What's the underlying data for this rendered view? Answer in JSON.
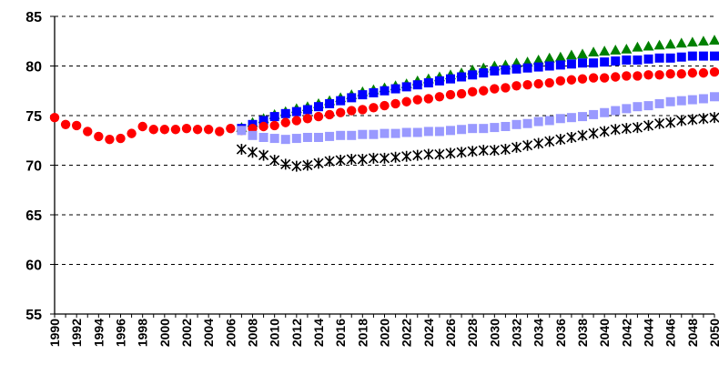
{
  "chart_data": {
    "type": "line",
    "title": "",
    "xlabel": "",
    "ylabel": "",
    "xlim": [
      1990,
      2050
    ],
    "ylim": [
      55,
      85
    ],
    "yticks": [
      55,
      60,
      65,
      70,
      75,
      80,
      85
    ],
    "xticks": [
      1990,
      1992,
      1994,
      1996,
      1998,
      2000,
      2002,
      2004,
      2006,
      2008,
      2010,
      2012,
      2014,
      2016,
      2018,
      2020,
      2022,
      2024,
      2026,
      2028,
      2030,
      2032,
      2034,
      2036,
      2038,
      2040,
      2042,
      2044,
      2046,
      2048,
      2050
    ],
    "grid": "horizontal dashed",
    "legend": "none",
    "series": [
      {
        "marker": "triangle",
        "color": "#008000",
        "x": [
          2007,
          2008,
          2009,
          2010,
          2011,
          2012,
          2013,
          2014,
          2015,
          2016,
          2017,
          2018,
          2019,
          2020,
          2021,
          2022,
          2023,
          2024,
          2025,
          2026,
          2027,
          2028,
          2029,
          2030,
          2031,
          2032,
          2033,
          2034,
          2035,
          2036,
          2037,
          2038,
          2039,
          2040,
          2041,
          2042,
          2043,
          2044,
          2045,
          2046,
          2047,
          2048,
          2049,
          2050
        ],
        "y": [
          73.8,
          74.3,
          74.7,
          75.1,
          75.4,
          75.7,
          75.9,
          76.2,
          76.5,
          76.8,
          77.1,
          77.4,
          77.6,
          77.8,
          78.0,
          78.2,
          78.5,
          78.7,
          78.9,
          79.1,
          79.3,
          79.6,
          79.8,
          80.0,
          80.1,
          80.3,
          80.4,
          80.6,
          80.8,
          80.9,
          81.1,
          81.2,
          81.4,
          81.5,
          81.6,
          81.7,
          81.9,
          82.0,
          82.1,
          82.2,
          82.3,
          82.4,
          82.5,
          82.6
        ]
      },
      {
        "marker": "square",
        "color": "#0000ff",
        "x": [
          2007,
          2008,
          2009,
          2010,
          2011,
          2012,
          2013,
          2014,
          2015,
          2016,
          2017,
          2018,
          2019,
          2020,
          2021,
          2022,
          2023,
          2024,
          2025,
          2026,
          2027,
          2028,
          2029,
          2030,
          2031,
          2032,
          2033,
          2034,
          2035,
          2036,
          2037,
          2038,
          2039,
          2040,
          2041,
          2042,
          2043,
          2044,
          2045,
          2046,
          2047,
          2048,
          2049,
          2050
        ],
        "y": [
          73.7,
          74.1,
          74.5,
          74.9,
          75.2,
          75.4,
          75.6,
          75.9,
          76.2,
          76.5,
          76.8,
          77.1,
          77.3,
          77.5,
          77.7,
          77.9,
          78.1,
          78.3,
          78.5,
          78.7,
          78.9,
          79.1,
          79.3,
          79.5,
          79.6,
          79.7,
          79.8,
          79.9,
          80.0,
          80.1,
          80.2,
          80.3,
          80.3,
          80.4,
          80.5,
          80.6,
          80.6,
          80.7,
          80.8,
          80.8,
          80.9,
          81.0,
          81.0,
          81.0
        ]
      },
      {
        "marker": "circle",
        "color": "#ff0000",
        "x": [
          1990,
          1991,
          1992,
          1993,
          1994,
          1995,
          1996,
          1997,
          1998,
          1999,
          2000,
          2001,
          2002,
          2003,
          2004,
          2005,
          2006,
          2007,
          2008,
          2009,
          2010,
          2011,
          2012,
          2013,
          2014,
          2015,
          2016,
          2017,
          2018,
          2019,
          2020,
          2021,
          2022,
          2023,
          2024,
          2025,
          2026,
          2027,
          2028,
          2029,
          2030,
          2031,
          2032,
          2033,
          2034,
          2035,
          2036,
          2037,
          2038,
          2039,
          2040,
          2041,
          2042,
          2043,
          2044,
          2045,
          2046,
          2047,
          2048,
          2049,
          2050
        ],
        "y": [
          74.8,
          74.1,
          74.0,
          73.4,
          72.9,
          72.6,
          72.7,
          73.2,
          73.9,
          73.6,
          73.6,
          73.6,
          73.7,
          73.6,
          73.6,
          73.4,
          73.7,
          73.5,
          73.7,
          73.9,
          74.0,
          74.3,
          74.5,
          74.7,
          74.9,
          75.1,
          75.3,
          75.5,
          75.6,
          75.8,
          76.0,
          76.2,
          76.4,
          76.6,
          76.7,
          76.9,
          77.1,
          77.2,
          77.4,
          77.5,
          77.7,
          77.8,
          78.0,
          78.1,
          78.2,
          78.3,
          78.5,
          78.6,
          78.7,
          78.8,
          78.8,
          78.9,
          79.0,
          79.0,
          79.1,
          79.1,
          79.2,
          79.2,
          79.3,
          79.3,
          79.4
        ]
      },
      {
        "marker": "square",
        "color": "#9999ff",
        "x": [
          2007,
          2008,
          2009,
          2010,
          2011,
          2012,
          2013,
          2014,
          2015,
          2016,
          2017,
          2018,
          2019,
          2020,
          2021,
          2022,
          2023,
          2024,
          2025,
          2026,
          2027,
          2028,
          2029,
          2030,
          2031,
          2032,
          2033,
          2034,
          2035,
          2036,
          2037,
          2038,
          2039,
          2040,
          2041,
          2042,
          2043,
          2044,
          2045,
          2046,
          2047,
          2048,
          2049,
          2050
        ],
        "y": [
          73.5,
          73.0,
          72.8,
          72.7,
          72.6,
          72.7,
          72.8,
          72.8,
          72.9,
          73.0,
          73.0,
          73.1,
          73.1,
          73.2,
          73.2,
          73.3,
          73.3,
          73.4,
          73.4,
          73.5,
          73.6,
          73.7,
          73.7,
          73.8,
          73.9,
          74.1,
          74.2,
          74.4,
          74.5,
          74.7,
          74.8,
          74.9,
          75.1,
          75.3,
          75.5,
          75.7,
          75.9,
          76.0,
          76.2,
          76.4,
          76.5,
          76.6,
          76.7,
          76.9
        ]
      },
      {
        "marker": "asterisk",
        "color": "#000000",
        "x": [
          2007,
          2008,
          2009,
          2010,
          2011,
          2012,
          2013,
          2014,
          2015,
          2016,
          2017,
          2018,
          2019,
          2020,
          2021,
          2022,
          2023,
          2024,
          2025,
          2026,
          2027,
          2028,
          2029,
          2030,
          2031,
          2032,
          2033,
          2034,
          2035,
          2036,
          2037,
          2038,
          2039,
          2040,
          2041,
          2042,
          2043,
          2044,
          2045,
          2046,
          2047,
          2048,
          2049,
          2050
        ],
        "y": [
          71.6,
          71.3,
          71.0,
          70.5,
          70.1,
          69.9,
          70.0,
          70.2,
          70.4,
          70.5,
          70.6,
          70.6,
          70.7,
          70.7,
          70.8,
          70.9,
          71.0,
          71.1,
          71.1,
          71.2,
          71.3,
          71.4,
          71.5,
          71.5,
          71.6,
          71.8,
          72.0,
          72.2,
          72.4,
          72.6,
          72.8,
          73.0,
          73.2,
          73.4,
          73.6,
          73.7,
          73.8,
          74.0,
          74.2,
          74.3,
          74.5,
          74.6,
          74.7,
          74.8
        ]
      }
    ]
  }
}
